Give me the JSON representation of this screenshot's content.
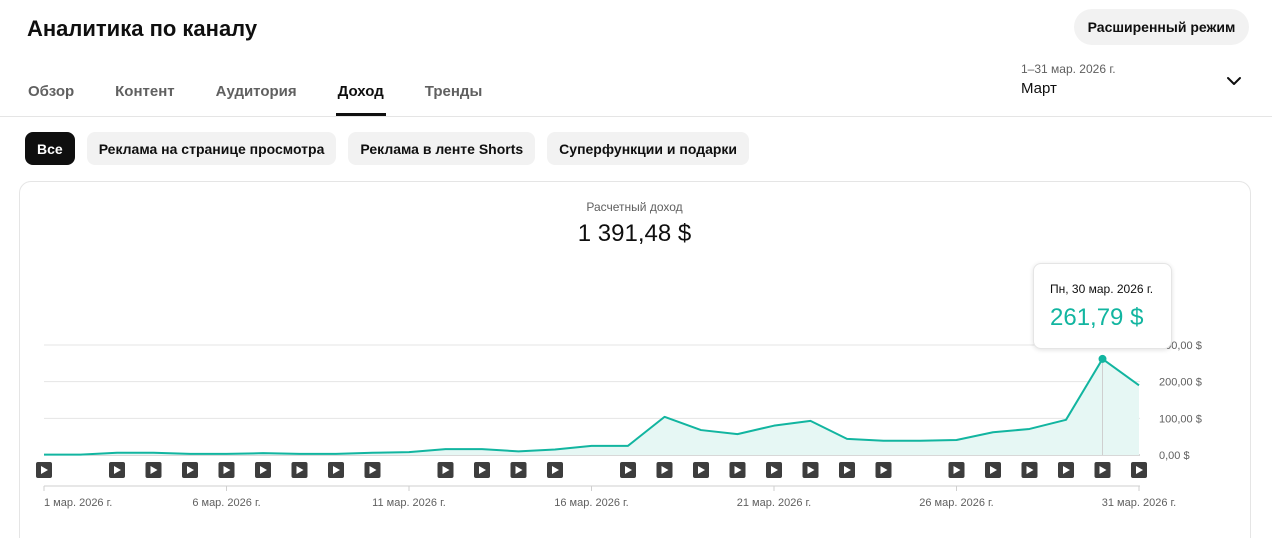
{
  "header": {
    "title": "Аналитика по каналу",
    "advanced_mode_label": "Расширенный режим"
  },
  "tabs": [
    {
      "label": "Обзор",
      "active": false
    },
    {
      "label": "Контент",
      "active": false
    },
    {
      "label": "Аудитория",
      "active": false
    },
    {
      "label": "Доход",
      "active": true
    },
    {
      "label": "Тренды",
      "active": false
    }
  ],
  "date_picker": {
    "range": "1–31 мар. 2026 г.",
    "period": "Март",
    "icon": "chevron-down-icon"
  },
  "filters": [
    {
      "label": "Все",
      "active": true
    },
    {
      "label": "Реклама на странице просмотра",
      "active": false
    },
    {
      "label": "Реклама в ленте Shorts",
      "active": false
    },
    {
      "label": "Суперфункции и подарки",
      "active": false
    }
  ],
  "metric": {
    "label": "Расчетный доход",
    "value": "1 391,48 $"
  },
  "tooltip": {
    "date": "Пн, 30 мар. 2026 г.",
    "value": "261,79 $"
  },
  "colors": {
    "accent": "#12b5a0",
    "fill": "#e6f7f4",
    "text_primary": "#0f0f0f",
    "text_secondary": "#606060"
  },
  "chart_data": {
    "type": "area",
    "x_tick_labels": [
      "1 мар. 2026 г.",
      "6 мар. 2026 г.",
      "11 мар. 2026 г.",
      "16 мар. 2026 г.",
      "21 мар. 2026 г.",
      "26 мар. 2026 г.",
      "31 мар. 2026 г."
    ],
    "x_tick_days": [
      1,
      6,
      11,
      16,
      21,
      26,
      31
    ],
    "y_tick_labels": [
      "0,00 $",
      "100,00 $",
      "200,00 $",
      "300,00 $"
    ],
    "y_tick_values": [
      0,
      100,
      200,
      300
    ],
    "ylim": [
      0,
      300
    ],
    "days": [
      1,
      2,
      3,
      4,
      5,
      6,
      7,
      8,
      9,
      10,
      11,
      12,
      13,
      14,
      15,
      16,
      17,
      18,
      19,
      20,
      21,
      22,
      23,
      24,
      25,
      26,
      27,
      28,
      29,
      30,
      31
    ],
    "values": [
      1,
      1,
      6,
      6,
      3,
      3,
      5,
      3,
      3,
      6,
      8,
      16,
      16,
      10,
      15,
      25,
      25,
      104,
      68,
      57,
      80,
      93,
      44,
      39,
      39,
      41,
      62,
      71,
      96,
      262,
      190
    ],
    "video_marker_days": [
      1,
      3,
      4,
      5,
      6,
      7,
      8,
      9,
      10,
      12,
      13,
      14,
      15,
      17,
      18,
      19,
      20,
      21,
      22,
      23,
      24,
      26,
      27,
      28,
      29,
      30,
      31
    ],
    "highlight_day": 30,
    "grid": true
  }
}
